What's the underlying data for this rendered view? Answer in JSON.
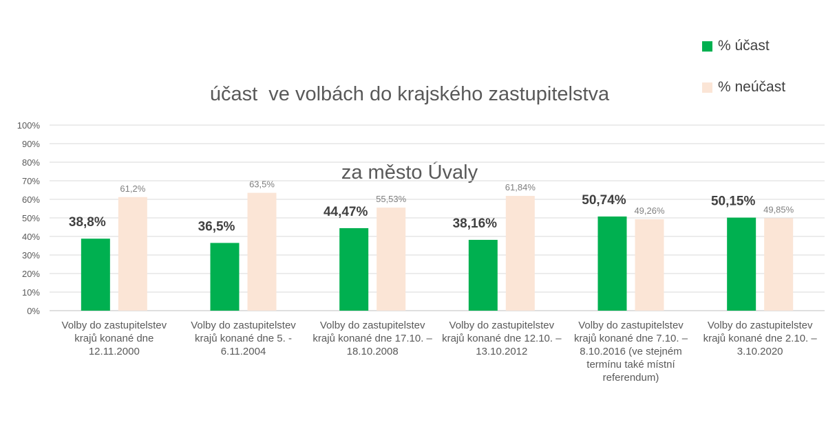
{
  "chart_data": {
    "type": "bar",
    "title": [
      "účast  ve volbách do krajského zastupitelstva",
      "za město Úvaly"
    ],
    "categories": [
      [
        "Volby do zastupitelstev",
        "krajů konané dne",
        "12.11.2000"
      ],
      [
        "Volby do zastupitelstev",
        "krajů konané dne  5. -",
        "6.11.2004"
      ],
      [
        "Volby do zastupitelstev",
        "krajů konané dne 17.10. –",
        "18.10.2008"
      ],
      [
        "Volby do zastupitelstev",
        "krajů konané dne 12.10. –",
        "13.10.2012"
      ],
      [
        "Volby do zastupitelstev",
        "krajů konané dne 7.10. –",
        "8.10.2016 (ve stejném",
        "termínu také místní",
        "referendum)"
      ],
      [
        "Volby do zastupitelstev",
        "krajů konané dne 2.10. –",
        "3.10.2020"
      ]
    ],
    "series": [
      {
        "name": "% účast",
        "color": "#00b050",
        "values": [
          38.8,
          36.5,
          44.47,
          38.16,
          50.74,
          50.15
        ],
        "labels": [
          "38,8%",
          "36,5%",
          "44,47%",
          "38,16%",
          "50,74%",
          "50,15%"
        ]
      },
      {
        "name": "% neúčast",
        "color": "#fbe5d6",
        "values": [
          61.2,
          63.5,
          55.53,
          61.84,
          49.26,
          49.85
        ],
        "labels": [
          "61,2%",
          "63,5%",
          "55,53%",
          "61,84%",
          "49,26%",
          "49,85%"
        ]
      }
    ],
    "yticks": [
      "0%",
      "10%",
      "20%",
      "30%",
      "40%",
      "50%",
      "60%",
      "70%",
      "80%",
      "90%",
      "100%"
    ],
    "ylim": [
      0,
      100
    ],
    "grid": true,
    "legend_position": "top-right"
  }
}
